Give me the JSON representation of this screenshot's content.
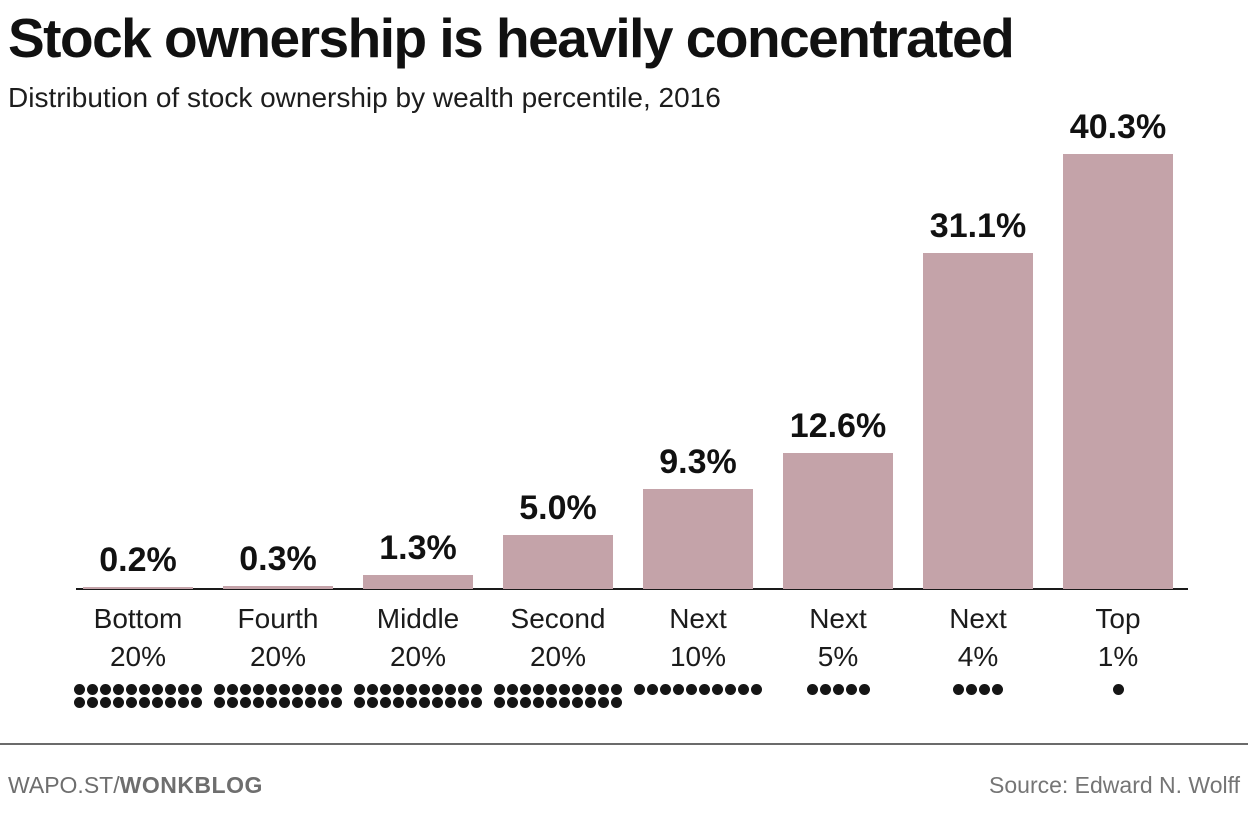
{
  "header": {
    "title": "Stock ownership is heavily concentrated",
    "subtitle": "Distribution of stock ownership by wealth percentile, 2016"
  },
  "footer": {
    "brand_prefix": "WAPO.ST/",
    "brand_bold": "WONKBLOG",
    "source": "Source: Edward N. Wolff"
  },
  "chart_data": {
    "type": "bar",
    "title": "Stock ownership is heavily concentrated",
    "subtitle": "Distribution of stock ownership by wealth percentile, 2016",
    "source": "Edward N. Wolff",
    "categories": [
      "Bottom 20%",
      "Fourth 20%",
      "Middle 20%",
      "Second 20%",
      "Next 10%",
      "Next 5%",
      "Next 4%",
      "Top 1%"
    ],
    "values": [
      0.2,
      0.3,
      1.3,
      5.0,
      9.3,
      12.6,
      31.1,
      40.3
    ],
    "value_labels": [
      "0.2%",
      "0.3%",
      "1.3%",
      "5.0%",
      "9.3%",
      "12.6%",
      "31.1%",
      "40.3%"
    ],
    "population_dots": [
      20,
      20,
      20,
      20,
      10,
      5,
      4,
      1
    ],
    "dots_per_row": 10,
    "xlabel": "",
    "ylabel": "",
    "ylim": [
      0,
      43
    ],
    "grid": false,
    "legend": false,
    "bar_color": "#c4a3a9",
    "axis_color": "#1a1a1a",
    "label_color": "#111111",
    "dot_color": "#151515"
  }
}
